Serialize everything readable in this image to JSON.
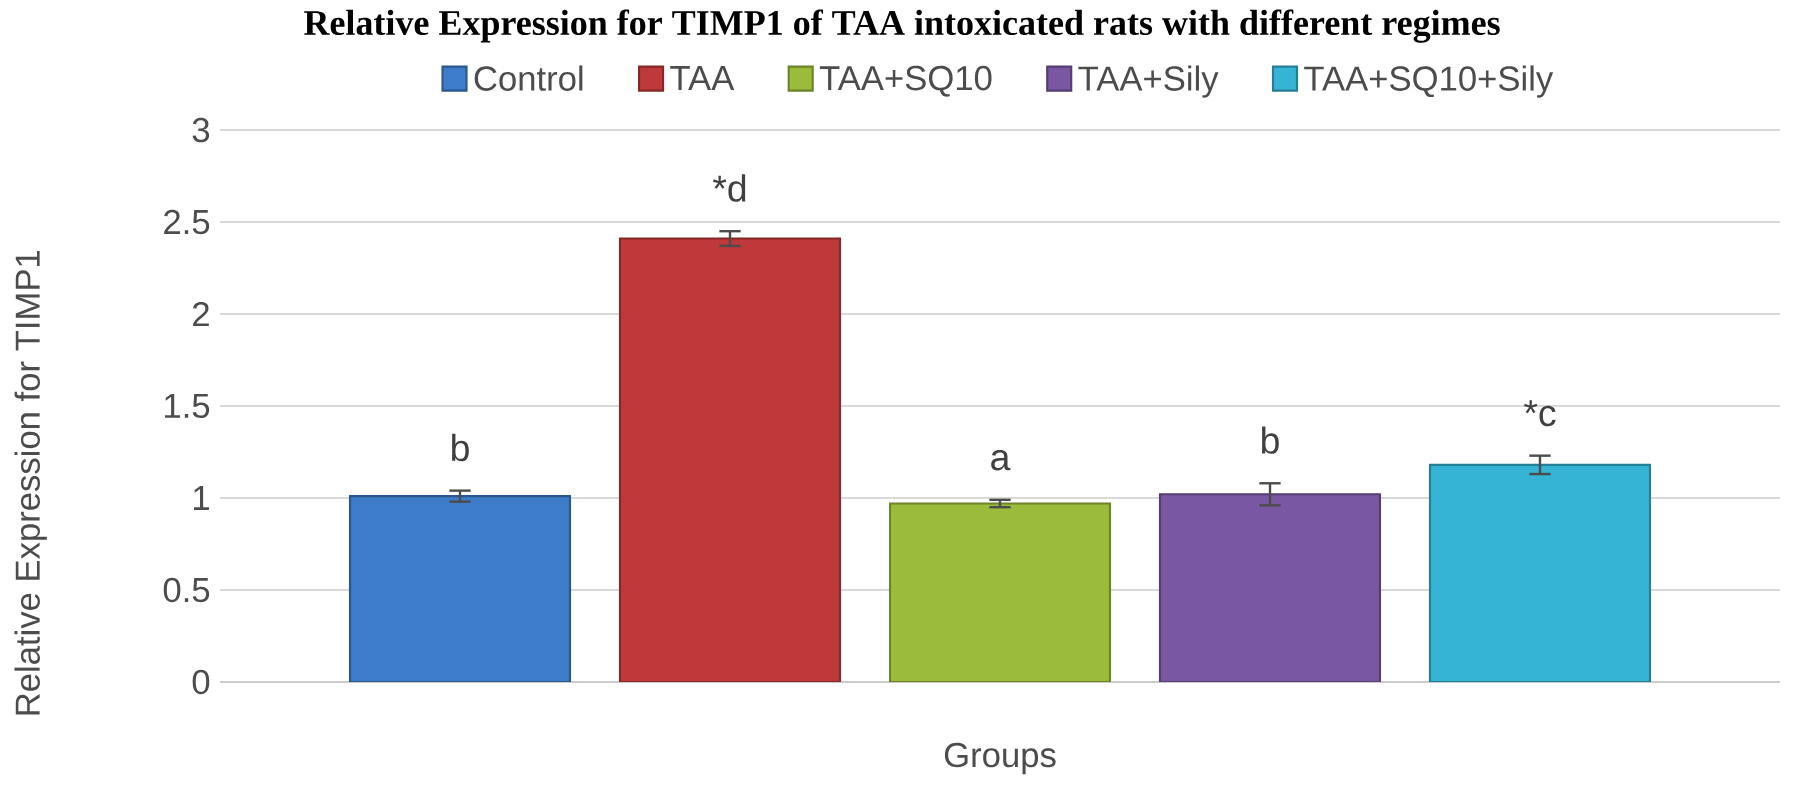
{
  "chart_data": {
    "type": "bar",
    "title": "Relative Expression for TIMP1 of TAA intoxicated rats with different regimes",
    "ylabel": "Relative Expression for TIMP1",
    "categories": [
      "Groups"
    ],
    "series": [
      {
        "name": "Control",
        "color": "#3d7cc9",
        "values": [
          1.01
        ],
        "errors": [
          0.03
        ],
        "value_labels": [
          "b"
        ]
      },
      {
        "name": "TAA",
        "color": "#c0393a",
        "values": [
          2.41
        ],
        "errors": [
          0.04
        ],
        "value_labels": [
          "*d"
        ]
      },
      {
        "name": "TAA+SQ10",
        "color": "#9bbb3b",
        "values": [
          0.97
        ],
        "errors": [
          0.02
        ],
        "value_labels": [
          "a"
        ]
      },
      {
        "name": "TAA+Sily",
        "color": "#7a57a3",
        "values": [
          1.02
        ],
        "errors": [
          0.06
        ],
        "value_labels": [
          "b"
        ]
      },
      {
        "name": "TAA+SQ10+Sily",
        "color": "#36b4d6",
        "values": [
          1.18
        ],
        "errors": [
          0.05
        ],
        "value_labels": [
          "*c"
        ]
      }
    ],
    "ylim": [
      0,
      3
    ],
    "yticks": [
      0,
      0.5,
      1,
      1.5,
      2,
      2.5,
      3
    ],
    "grid": "y",
    "legend": "top"
  }
}
